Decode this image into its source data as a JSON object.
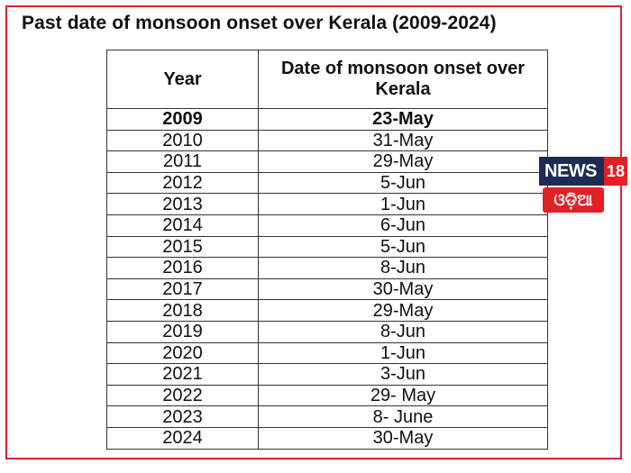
{
  "title": "Past date of monsoon onset over Kerala (2009-2024)",
  "table": {
    "headers": [
      "Year",
      "Date of monsoon onset over Kerala"
    ],
    "rows": [
      {
        "year": "2009",
        "date": "23-May"
      },
      {
        "year": "2010",
        "date": "31-May"
      },
      {
        "year": "2011",
        "date": "29-May"
      },
      {
        "year": "2012",
        "date": "5-Jun"
      },
      {
        "year": "2013",
        "date": "1-Jun"
      },
      {
        "year": "2014",
        "date": "6-Jun"
      },
      {
        "year": "2015",
        "date": "5-Jun"
      },
      {
        "year": "2016",
        "date": "8-Jun"
      },
      {
        "year": "2017",
        "date": "30-May"
      },
      {
        "year": "2018",
        "date": "29-May"
      },
      {
        "year": "2019",
        "date": "8-Jun"
      },
      {
        "year": "2020",
        "date": "1-Jun"
      },
      {
        "year": "2021",
        "date": "3-Jun"
      },
      {
        "year": "2022",
        "date": "29- May"
      },
      {
        "year": "2023",
        "date": "8- June"
      },
      {
        "year": "2024",
        "date": "30-May"
      }
    ]
  },
  "logo": {
    "word": "NEWS",
    "number": "18",
    "subtitle": "ଓଡ଼ିଆ"
  },
  "colors": {
    "frame": "#d9262c",
    "logo_navy": "#1c2c52",
    "logo_red": "#e32026"
  }
}
